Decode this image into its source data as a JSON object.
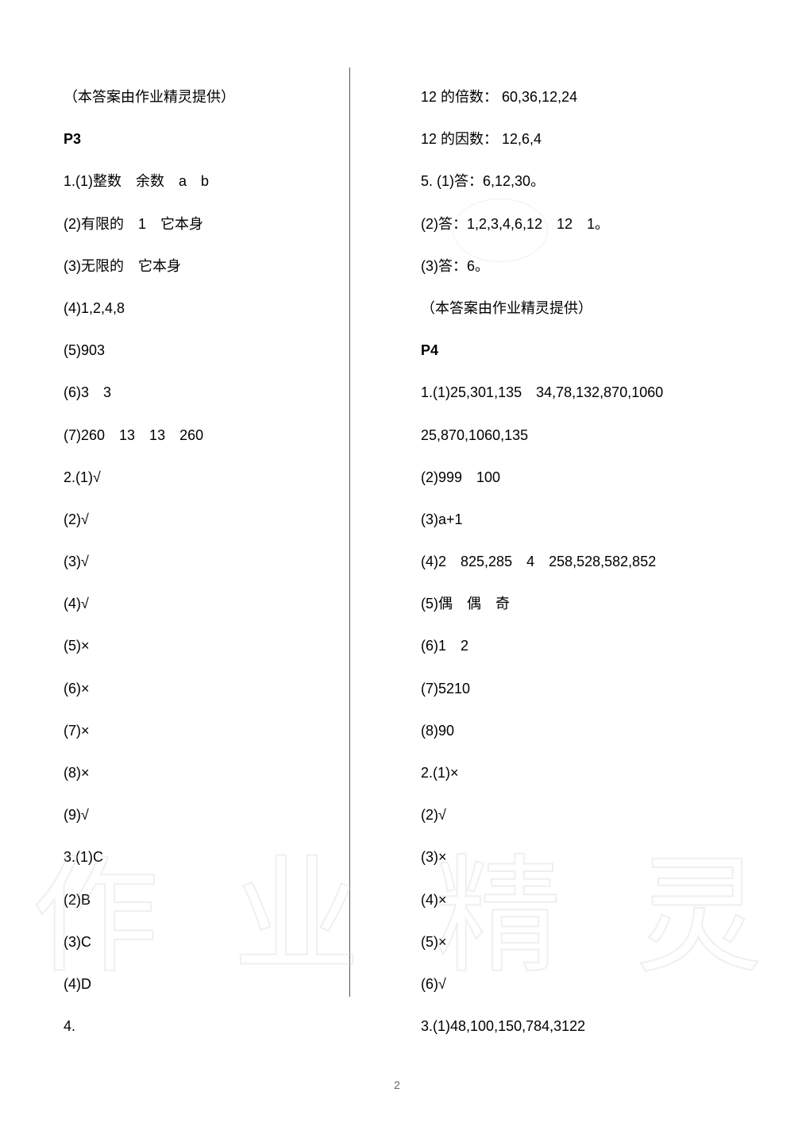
{
  "left_column": {
    "source": "（本答案由作业精灵提供）",
    "page_heading": "P3",
    "items": [
      "1.(1)整数　余数　a　b",
      "(2)有限的　1　它本身",
      "(3)无限的　它本身",
      "(4)1,2,4,8",
      "(5)903",
      "(6)3　3",
      "(7)260　13　13　260",
      "2.(1)√",
      "(2)√",
      "(3)√",
      "(4)√",
      "(5)×",
      "(6)×",
      "(7)×",
      "(8)×",
      "(9)√",
      "3.(1)C",
      "(2)B",
      "(3)C",
      "(4)D",
      "4."
    ]
  },
  "right_column": {
    "items_top": [
      "12 的倍数： 60,36,12,24",
      "12 的因数： 12,6,4",
      "5. (1)答：6,12,30。",
      "(2)答：1,2,3,4,6,12　12　1。",
      "(3)答：6。",
      "（本答案由作业精灵提供）"
    ],
    "page_heading": "P4",
    "items_bottom": [
      "1.(1)25,301,135　34,78,132,870,1060",
      " 25,870,1060,135",
      "(2)999　100",
      "(3)a+1",
      "(4)2　825,285　4　258,528,582,852",
      "(5)偶　偶　奇",
      "(6)1　2",
      "(7)5210",
      "(8)90",
      "2.(1)×",
      "(2)√",
      "(3)×",
      "(4)×",
      "(5)×",
      "(6)√",
      "3.(1)48,100,150,784,3122"
    ]
  },
  "page_number": "2",
  "watermark": {
    "chars": [
      "作",
      "业",
      "精",
      "灵"
    ]
  },
  "colors": {
    "text": "#000000",
    "background": "#ffffff",
    "divider": "#555555",
    "watermark_stroke": "#cccccc",
    "page_num": "#666666"
  }
}
